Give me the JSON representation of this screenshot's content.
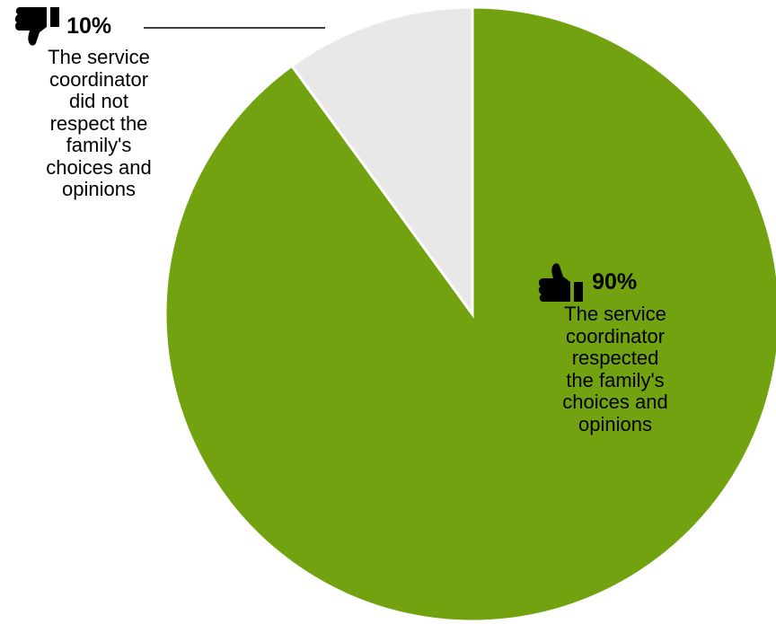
{
  "chart_data": {
    "type": "pie",
    "slices": [
      {
        "label": "The service coordinator respected the family's choices and opinions",
        "label_lines": [
          "The service",
          "coordinator",
          "respected",
          "the family's",
          "choices and",
          "opinions"
        ],
        "value": 90,
        "value_label": "90%",
        "color": "#72a20f",
        "icon": "thumbs-up-icon"
      },
      {
        "label": "The service coordinator did not respect the family's choices and opinions",
        "label_lines": [
          "The service",
          "coordinator",
          "did not",
          "respect the",
          "family's",
          "choices and",
          "opinions"
        ],
        "value": 10,
        "value_label": "10%",
        "color": "#e8e8e8",
        "icon": "thumbs-down-icon"
      }
    ],
    "start_angle": "12 o'clock",
    "direction": "clockwise",
    "legend": "none",
    "title": ""
  }
}
